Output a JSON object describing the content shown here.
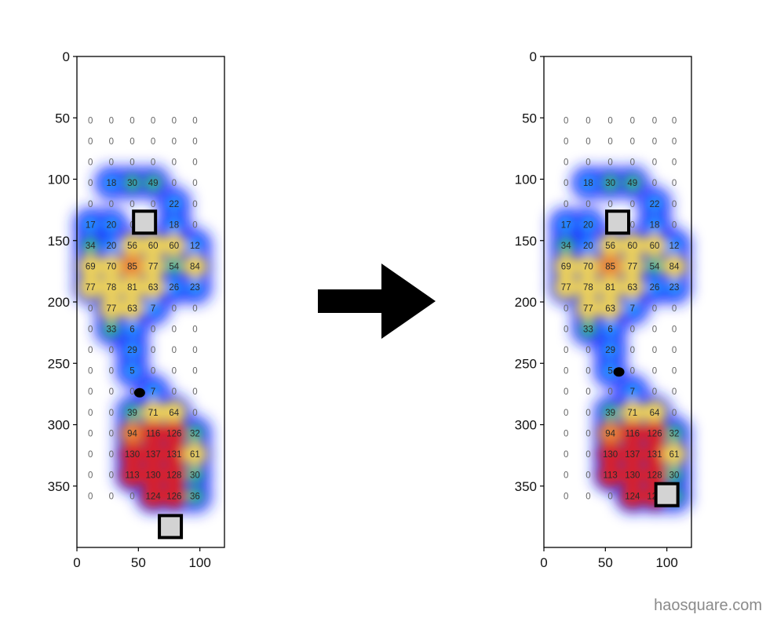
{
  "credit": "haosquare.com",
  "colors": {
    "heat_low": "#1a2cff",
    "heat_mid": "#ffe04a",
    "heat_high": "#e8201a",
    "marker_fill": "#d3d3d3",
    "marker_stroke": "#000000",
    "arrow": "#000000"
  },
  "chart_data": [
    {
      "type": "heatmap",
      "title": "",
      "xlabel": "",
      "ylabel": "",
      "xlim": [
        0,
        120
      ],
      "ylim": [
        400,
        0
      ],
      "x_ticks": [
        0,
        50,
        100
      ],
      "y_ticks": [
        0,
        50,
        100,
        150,
        200,
        250,
        300,
        350
      ],
      "grid": false,
      "pressure_grid": {
        "x": [
          11,
          28,
          45,
          62,
          79,
          96
        ],
        "y": [
          52,
          69,
          86,
          103,
          120,
          137,
          154,
          171,
          188,
          205,
          222,
          239,
          256,
          273,
          290,
          307,
          324,
          341,
          358
        ],
        "values": [
          [
            0,
            0,
            0,
            0,
            0,
            0
          ],
          [
            0,
            0,
            0,
            0,
            0,
            0
          ],
          [
            0,
            0,
            0,
            0,
            0,
            0
          ],
          [
            0,
            18,
            30,
            49,
            0,
            0
          ],
          [
            0,
            0,
            0,
            0,
            22,
            0
          ],
          [
            17,
            20,
            0,
            0,
            18,
            0
          ],
          [
            34,
            20,
            56,
            60,
            60,
            12
          ],
          [
            69,
            70,
            85,
            77,
            54,
            84
          ],
          [
            77,
            78,
            81,
            63,
            26,
            23
          ],
          [
            0,
            77,
            63,
            7,
            0,
            0
          ],
          [
            0,
            33,
            6,
            0,
            0,
            0
          ],
          [
            0,
            0,
            29,
            0,
            0,
            0
          ],
          [
            0,
            0,
            5,
            0,
            0,
            0
          ],
          [
            0,
            0,
            0,
            7,
            0,
            0
          ],
          [
            0,
            0,
            39,
            71,
            64,
            0
          ],
          [
            0,
            0,
            94,
            116,
            126,
            32
          ],
          [
            0,
            0,
            130,
            137,
            131,
            61
          ],
          [
            0,
            0,
            113,
            130,
            128,
            30
          ],
          [
            0,
            0,
            0,
            124,
            126,
            36
          ]
        ]
      },
      "markers": [
        {
          "x": 55,
          "y": 135
        },
        {
          "x": 76,
          "y": 383
        }
      ],
      "dot": {
        "x": 51,
        "y": 274
      }
    },
    {
      "type": "heatmap",
      "title": "",
      "xlabel": "",
      "ylabel": "",
      "xlim": [
        0,
        120
      ],
      "ylim": [
        400,
        0
      ],
      "x_ticks": [
        0,
        50,
        100
      ],
      "y_ticks": [
        0,
        50,
        100,
        150,
        200,
        250,
        300,
        350
      ],
      "grid": false,
      "pressure_grid": {
        "x": [
          18,
          36,
          54,
          72,
          90,
          106
        ],
        "y": [
          52,
          69,
          86,
          103,
          120,
          137,
          154,
          171,
          188,
          205,
          222,
          239,
          256,
          273,
          290,
          307,
          324,
          341,
          358
        ],
        "values": [
          [
            0,
            0,
            0,
            0,
            0,
            0
          ],
          [
            0,
            0,
            0,
            0,
            0,
            0
          ],
          [
            0,
            0,
            0,
            0,
            0,
            0
          ],
          [
            0,
            18,
            30,
            49,
            0,
            0
          ],
          [
            0,
            0,
            0,
            0,
            22,
            0
          ],
          [
            17,
            20,
            0,
            0,
            18,
            0
          ],
          [
            34,
            20,
            56,
            60,
            60,
            12
          ],
          [
            69,
            70,
            85,
            77,
            54,
            84
          ],
          [
            77,
            78,
            81,
            63,
            26,
            23
          ],
          [
            0,
            77,
            63,
            7,
            0,
            0
          ],
          [
            0,
            33,
            6,
            0,
            0,
            0
          ],
          [
            0,
            0,
            29,
            0,
            0,
            0
          ],
          [
            0,
            0,
            5,
            0,
            0,
            0
          ],
          [
            0,
            0,
            0,
            7,
            0,
            0
          ],
          [
            0,
            0,
            39,
            71,
            64,
            0
          ],
          [
            0,
            0,
            94,
            116,
            126,
            32
          ],
          [
            0,
            0,
            130,
            137,
            131,
            61
          ],
          [
            0,
            0,
            113,
            130,
            128,
            30
          ],
          [
            0,
            0,
            0,
            124,
            126,
            36
          ]
        ]
      },
      "markers": [
        {
          "x": 60,
          "y": 135
        },
        {
          "x": 100,
          "y": 357
        }
      ],
      "dot": {
        "x": 61,
        "y": 257
      }
    }
  ]
}
